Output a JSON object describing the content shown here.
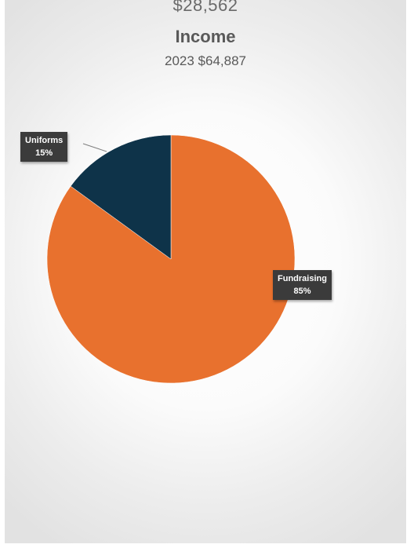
{
  "header": {
    "top_value": "$28,562"
  },
  "chart_data": {
    "type": "pie",
    "title": "Income",
    "subtitle": "2023 $64,887",
    "categories": [
      "Fundraising",
      "Uniforms"
    ],
    "values": [
      85,
      15
    ],
    "value_labels": [
      "85%",
      "15%"
    ],
    "colors": [
      "#E8712E",
      "#0E3349"
    ],
    "start_angle_deg": 0,
    "direction": "clockwise",
    "legend": "none",
    "data_labels": "callouts"
  }
}
